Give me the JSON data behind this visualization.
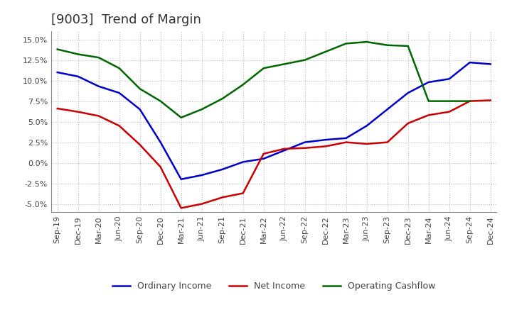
{
  "title": "[9003]  Trend of Margin",
  "x_labels": [
    "Sep-19",
    "Dec-19",
    "Mar-20",
    "Jun-20",
    "Sep-20",
    "Dec-20",
    "Mar-21",
    "Jun-21",
    "Sep-21",
    "Dec-21",
    "Mar-22",
    "Jun-22",
    "Sep-22",
    "Dec-22",
    "Mar-23",
    "Jun-23",
    "Sep-23",
    "Dec-23",
    "Mar-24",
    "Jun-24",
    "Sep-24",
    "Dec-24"
  ],
  "ordinary_income": [
    11.0,
    10.5,
    9.3,
    8.5,
    6.5,
    2.5,
    -2.0,
    -1.5,
    -0.8,
    0.1,
    0.5,
    1.5,
    2.5,
    2.8,
    3.0,
    4.5,
    6.5,
    8.5,
    9.8,
    10.2,
    12.2,
    12.0
  ],
  "net_income": [
    6.6,
    6.2,
    5.7,
    4.5,
    2.2,
    -0.5,
    -5.5,
    -5.0,
    -4.2,
    -3.7,
    1.1,
    1.7,
    1.8,
    2.0,
    2.5,
    2.3,
    2.5,
    4.8,
    5.8,
    6.2,
    7.5,
    7.6
  ],
  "operating_cashflow": [
    13.8,
    13.2,
    12.8,
    11.5,
    9.0,
    7.5,
    5.5,
    6.5,
    7.8,
    9.5,
    11.5,
    12.0,
    12.5,
    13.5,
    14.5,
    14.7,
    14.3,
    14.2,
    7.5,
    7.5,
    7.5,
    null
  ],
  "ylim": [
    -6.0,
    16.0
  ],
  "yticks": [
    -5.0,
    -2.5,
    0.0,
    2.5,
    5.0,
    7.5,
    10.0,
    12.5,
    15.0
  ],
  "color_ordinary": "#0000CC",
  "color_net": "#CC0000",
  "color_cashflow": "#006600",
  "bg_color": "#FFFFFF",
  "plot_bg_color": "#FFFFFF",
  "grid_color": "#BBBBBB",
  "title_color": "#333333",
  "title_fontsize": 13,
  "legend_fontsize": 9,
  "tick_fontsize": 8,
  "linewidth": 1.8
}
